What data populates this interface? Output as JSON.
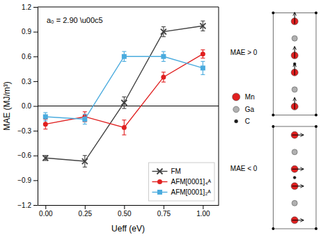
{
  "chart_data": {
    "type": "line",
    "x": [
      0,
      0.25,
      0.5,
      0.75,
      1.0
    ],
    "series": [
      {
        "name": "FM",
        "color": "#404040",
        "marker": "x",
        "values": [
          -0.63,
          -0.67,
          0.04,
          0.9,
          0.97
        ],
        "yerr": [
          0.03,
          0.07,
          0.07,
          0.06,
          0.06
        ]
      },
      {
        "name": "AFM[0001]₄ᴬ",
        "color": "#e02020",
        "marker": "circle",
        "values": [
          -0.22,
          -0.13,
          -0.26,
          0.35,
          0.63
        ],
        "yerr": [
          0.06,
          0.06,
          0.09,
          0.06,
          0.05
        ]
      },
      {
        "name": "AFM[0001]₂ᴬ",
        "color": "#4aabde",
        "marker": "square",
        "values": [
          -0.13,
          -0.16,
          0.6,
          0.6,
          0.46
        ],
        "yerr": [
          0.05,
          0.06,
          0.06,
          0.06,
          0.08
        ]
      }
    ],
    "x_label": "Ueff (eV)",
    "y_label": "MAE (MJ/m³)",
    "annotation": "a₀ = 2.90 \\u00c5",
    "xlim": [
      -0.05,
      1.1
    ],
    "ylim": [
      -1.2,
      1.2
    ],
    "xticks": [
      {
        "value": 0,
        "label": "0.00"
      },
      {
        "value": 0.25,
        "label": "0.25"
      },
      {
        "value": 0.5,
        "label": "0.50"
      },
      {
        "value": 0.75,
        "label": "0.75"
      },
      {
        "value": 1.0,
        "label": "1.00"
      }
    ],
    "yticks": [
      {
        "value": -1.2,
        "label": "−1.2"
      },
      {
        "value": -0.9,
        "label": "−0.9"
      },
      {
        "value": -0.6,
        "label": "−0.6"
      },
      {
        "value": -0.3,
        "label": "−0.3"
      },
      {
        "value": 0.0,
        "label": "0.0"
      },
      0.3,
      0.6,
      0.9,
      1.2
    ],
    "hline": 0,
    "grid": false,
    "legend": "lower right",
    "panel_labels": [
      "MAE > 0",
      "MAE < 0"
    ],
    "atoms": [
      {
        "name": "Mn",
        "color": "#e02020"
      },
      {
        "name": "Ga",
        "color": "#b0b0b0"
      },
      {
        "name": "C",
        "color": "#1a1a1a"
      }
    ]
  }
}
